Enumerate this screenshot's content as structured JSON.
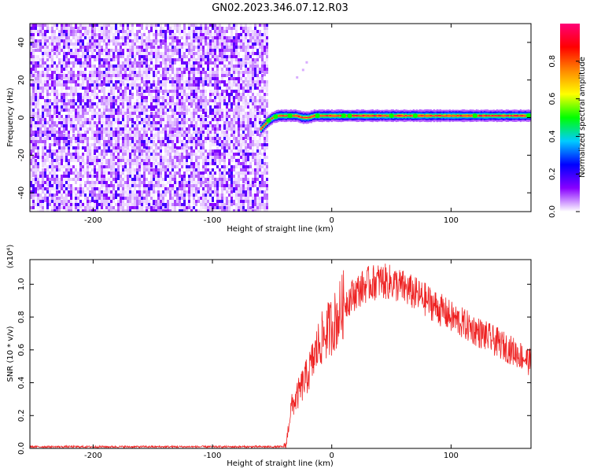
{
  "title": "GN02.2023.346.07.12.R03",
  "chart_data": [
    {
      "type": "heatmap",
      "xlabel": "Height of straight line (km)",
      "ylabel": "Frequency (Hz)",
      "xlim": [
        -253,
        167
      ],
      "ylim": [
        -50,
        50
      ],
      "x_ticks": [
        -200,
        -100,
        0,
        100
      ],
      "x_tick_labels": [
        "-200",
        "-100",
        "0",
        "100"
      ],
      "y_ticks": [
        -40,
        -20,
        0,
        20,
        40
      ],
      "y_tick_labels": [
        "-40",
        "-20",
        "0",
        "20",
        "40"
      ],
      "colorbar": {
        "label": "Normalized spectral amplitude",
        "range": [
          0,
          1
        ],
        "ticks": [
          0,
          0.2,
          0.4,
          0.6,
          0.8
        ],
        "tick_labels": [
          "0.0",
          "0.2",
          "0.4",
          "0.6",
          "0.8"
        ],
        "colors": [
          "#ffffff",
          "#8800ff",
          "#0000ff",
          "#00ccff",
          "#00ff00",
          "#ffff00",
          "#ff8800",
          "#ff0000",
          "#ff0077"
        ]
      },
      "noise_region": {
        "x_range": [
          -253,
          -55
        ],
        "freq_range": [
          -50,
          50
        ],
        "amplitude_range": [
          0.0,
          0.2
        ]
      },
      "signal_track": {
        "x": [
          -60,
          -57,
          -54,
          -50,
          -45,
          -40,
          -35,
          -30,
          -25,
          -20,
          -15,
          -10,
          0,
          20,
          60,
          100,
          140,
          167
        ],
        "freq": [
          -6,
          -4,
          -2,
          0,
          1,
          1,
          1,
          1,
          0,
          0,
          1,
          1,
          1,
          1,
          1,
          1,
          1,
          1
        ],
        "peak_amplitude": 1.0
      },
      "grid": false
    },
    {
      "type": "line",
      "xlabel": "Height of straight line (km)",
      "ylabel": "SNR (10 * v/v)",
      "y_multiplier": "(x10⁴)",
      "xlim": [
        -253,
        167
      ],
      "ylim": [
        0,
        1.15
      ],
      "x_ticks": [
        -200,
        -100,
        0,
        100
      ],
      "x_tick_labels": [
        "-200",
        "-100",
        "0",
        "100"
      ],
      "y_ticks": [
        0,
        0.2,
        0.4,
        0.6,
        0.8,
        1.0
      ],
      "y_tick_labels": [
        "0.0",
        "0.2",
        "0.4",
        "0.6",
        "0.8",
        "1.0"
      ],
      "color": "#ee2222",
      "series": [
        {
          "x": [
            -253,
            -200,
            -150,
            -100,
            -60,
            -40,
            -38,
            -36,
            -34,
            -30,
            -25,
            -20,
            -15,
            -10,
            -5,
            0,
            5,
            10,
            20,
            30,
            40,
            50,
            60,
            70,
            80,
            90,
            100,
            110,
            120,
            130,
            140,
            150,
            160,
            167
          ],
          "values": [
            0.01,
            0.01,
            0.01,
            0.01,
            0.01,
            0.01,
            0.03,
            0.15,
            0.25,
            0.3,
            0.38,
            0.45,
            0.55,
            0.65,
            0.7,
            0.75,
            0.8,
            0.88,
            0.95,
            1.0,
            1.02,
            1.01,
            0.98,
            0.94,
            0.9,
            0.85,
            0.8,
            0.76,
            0.72,
            0.68,
            0.64,
            0.6,
            0.56,
            0.52
          ]
        }
      ],
      "grid": false
    }
  ]
}
